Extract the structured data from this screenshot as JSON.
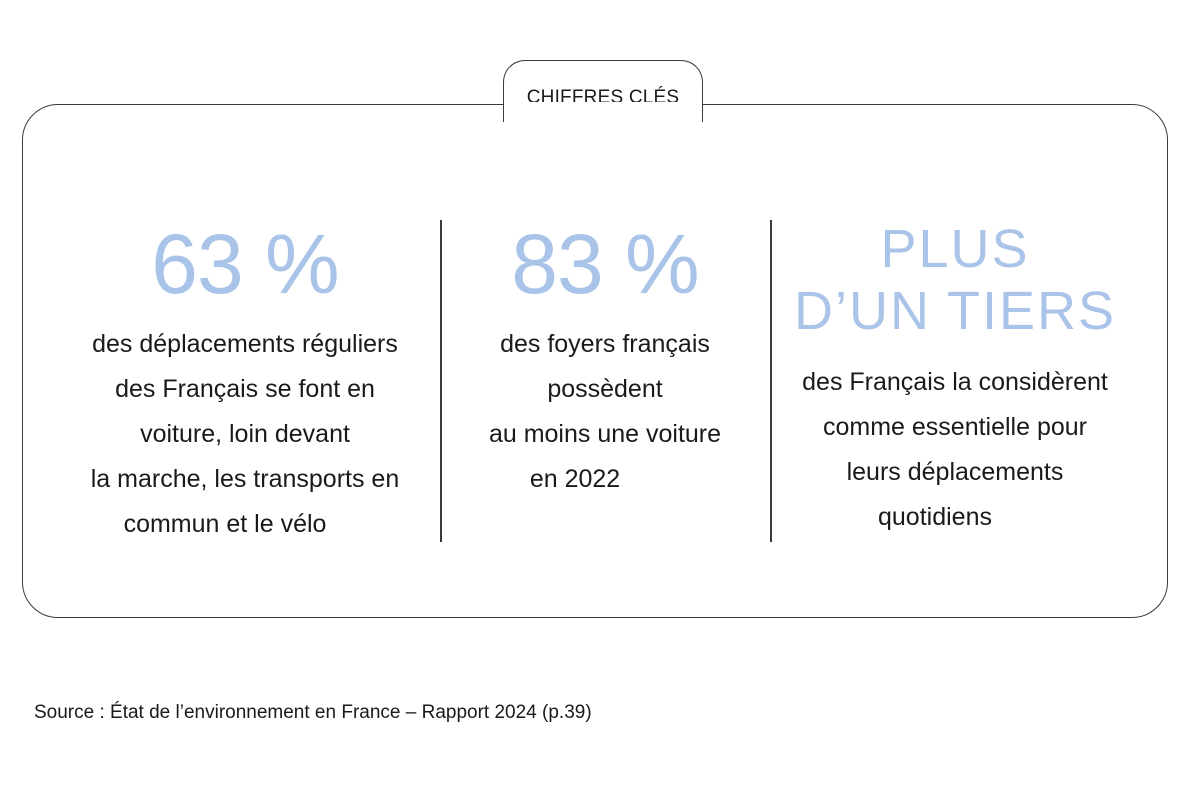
{
  "header": {
    "tab_label": "CHIFFRES CLÉS"
  },
  "stats": [
    {
      "figure": "63 %",
      "lines": [
        "des déplacements réguliers",
        "des Français se font en",
        "voiture, loin devant",
        "la marche, les transports en",
        "commun et le vélo"
      ]
    },
    {
      "figure": "83 %",
      "lines": [
        "des foyers français",
        "possèdent",
        "au moins une voiture",
        "en 2022"
      ]
    },
    {
      "figure_lines": [
        "PLUS",
        "D’UN TIERS"
      ],
      "lines": [
        "des Français la considèrent",
        "comme essentielle pour",
        "leurs déplacements",
        "quotidiens"
      ]
    }
  ],
  "footer": {
    "source": "Source : État de l’environnement en France – Rapport 2024 (p.39)"
  },
  "colors": {
    "accent": "#a9c4e8",
    "text": "#1a1a1a",
    "border": "#3a3a3a"
  }
}
